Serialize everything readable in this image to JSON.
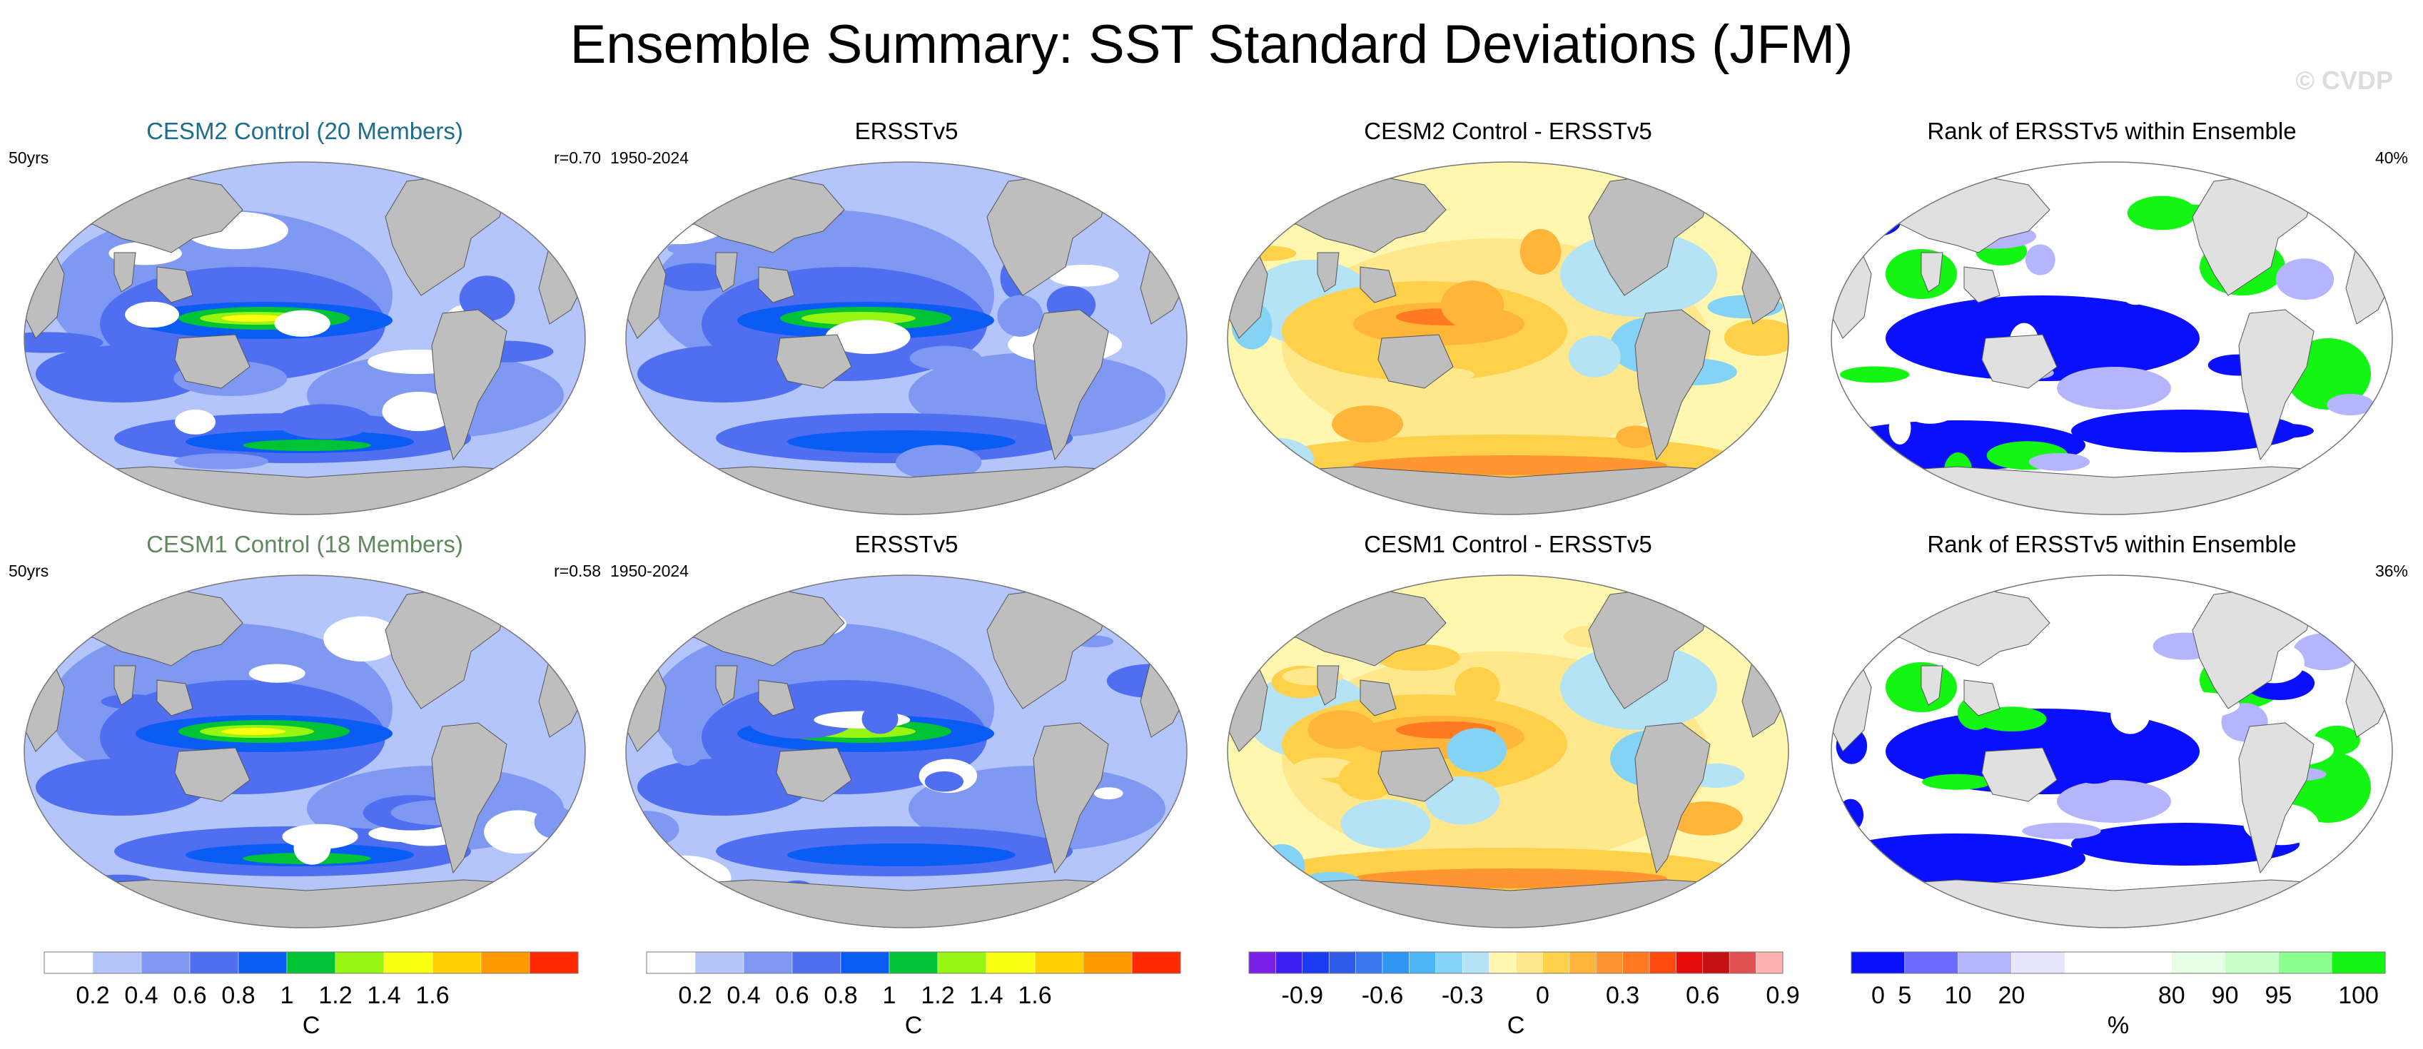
{
  "title": "Ensemble Summary: SST Standard Deviations (JFM)",
  "copyright": "© CVDP",
  "panels": [
    {
      "title": "CESM2 Control (20 Members)",
      "left": "50yrs",
      "right": "r=0.70",
      "kind": "sd",
      "title_color": "#1c6e8c"
    },
    {
      "title": "ERSSTv5",
      "left": "1950-2024",
      "right": "",
      "kind": "sd_obs"
    },
    {
      "title": "CESM2 Control - ERSSTv5",
      "left": "",
      "right": "",
      "kind": "diff"
    },
    {
      "title": "Rank of ERSSTv5 within Ensemble",
      "left": "",
      "right": "40%",
      "kind": "rank"
    },
    {
      "title": "CESM1 Control (18 Members)",
      "left": "50yrs",
      "right": "r=0.58",
      "kind": "sd",
      "title_color": "#5e8a5e"
    },
    {
      "title": "ERSSTv5",
      "left": "1950-2024",
      "right": "",
      "kind": "sd_obs"
    },
    {
      "title": "CESM1 Control - ERSSTv5",
      "left": "",
      "right": "",
      "kind": "diff"
    },
    {
      "title": "Rank of ERSSTv5 within Ensemble",
      "left": "",
      "right": "36%",
      "kind": "rank"
    }
  ],
  "colorbars": [
    {
      "unit": "C",
      "colors": [
        "#ffffff",
        "#b4c5fb",
        "#7f99f3",
        "#4f6ff0",
        "#0a5cf5",
        "#00c335",
        "#96f511",
        "#fbff10",
        "#ffd000",
        "#ff9a00",
        "#ff2a00"
      ],
      "ticks": [
        "0.2",
        "0.4",
        "0.6",
        "0.8",
        "1",
        "1.2",
        "1.4",
        "1.6"
      ]
    },
    {
      "unit": "C",
      "colors": [
        "#ffffff",
        "#b4c5fb",
        "#7f99f3",
        "#4f6ff0",
        "#0a5cf5",
        "#00c335",
        "#96f511",
        "#fbff10",
        "#ffd000",
        "#ff9a00",
        "#ff2a00"
      ],
      "ticks": [
        "0.2",
        "0.4",
        "0.6",
        "0.8",
        "1",
        "1.2",
        "1.4",
        "1.6"
      ]
    },
    {
      "unit": "C",
      "colors": [
        "#7a1fe6",
        "#3b1ff0",
        "#1a3cf0",
        "#2e5ce8",
        "#3b78f0",
        "#2e95f5",
        "#4ab4f5",
        "#84d2f5",
        "#b4e3f5",
        "#fff7b0",
        "#ffe88c",
        "#ffd04a",
        "#ffb43a",
        "#ff9630",
        "#ff7a20",
        "#ff4a10",
        "#e60c0c",
        "#c41010",
        "#e05050",
        "#ffb0b0"
      ],
      "ticks": [
        "-0.9",
        "-0.6",
        "-0.3",
        "0",
        "0.3",
        "0.6",
        "0.9"
      ]
    },
    {
      "unit": "%",
      "colors": [
        "#0a10ff",
        "#6b6bff",
        "#b4b4ff",
        "#e6e6ff",
        "#ffffff",
        "#ffffff",
        "#e6ffe6",
        "#c8ffc8",
        "#8cff8c",
        "#14f514"
      ],
      "ticks": [
        "0",
        "5",
        "10",
        "20",
        "80",
        "90",
        "95",
        "100"
      ]
    }
  ],
  "chart_data": [
    {
      "type": "heatmap",
      "title": "CESM2 Control (20 Members)",
      "subtitle_left": "50yrs",
      "subtitle_right": "r=0.70",
      "variable": "SST standard deviation",
      "units": "C",
      "levels": [
        0.2,
        0.4,
        0.6,
        0.8,
        1,
        1.2,
        1.4,
        1.6
      ]
    },
    {
      "type": "heatmap",
      "title": "ERSSTv5",
      "subtitle_left": "1950-2024",
      "variable": "SST standard deviation",
      "units": "C",
      "levels": [
        0.2,
        0.4,
        0.6,
        0.8,
        1,
        1.2,
        1.4,
        1.6
      ]
    },
    {
      "type": "heatmap",
      "title": "CESM2 Control - ERSSTv5",
      "variable": "SST standard deviation difference",
      "units": "C",
      "levels": [
        -0.9,
        -0.6,
        -0.3,
        0,
        0.3,
        0.6,
        0.9
      ]
    },
    {
      "type": "heatmap",
      "title": "Rank of ERSSTv5 within Ensemble",
      "subtitle_right": "40%",
      "units": "%",
      "levels": [
        0,
        5,
        10,
        20,
        80,
        90,
        95,
        100
      ]
    },
    {
      "type": "heatmap",
      "title": "CESM1 Control (18 Members)",
      "subtitle_left": "50yrs",
      "subtitle_right": "r=0.58",
      "variable": "SST standard deviation",
      "units": "C",
      "levels": [
        0.2,
        0.4,
        0.6,
        0.8,
        1,
        1.2,
        1.4,
        1.6
      ]
    },
    {
      "type": "heatmap",
      "title": "ERSSTv5",
      "subtitle_left": "1950-2024",
      "variable": "SST standard deviation",
      "units": "C",
      "levels": [
        0.2,
        0.4,
        0.6,
        0.8,
        1,
        1.2,
        1.4,
        1.6
      ]
    },
    {
      "type": "heatmap",
      "title": "CESM1 Control - ERSSTv5",
      "variable": "SST standard deviation difference",
      "units": "C",
      "levels": [
        -0.9,
        -0.6,
        -0.3,
        0,
        0.3,
        0.6,
        0.9
      ]
    },
    {
      "type": "heatmap",
      "title": "Rank of ERSSTv5 within Ensemble",
      "subtitle_right": "36%",
      "units": "%",
      "levels": [
        0,
        5,
        10,
        20,
        80,
        90,
        95,
        100
      ]
    }
  ]
}
